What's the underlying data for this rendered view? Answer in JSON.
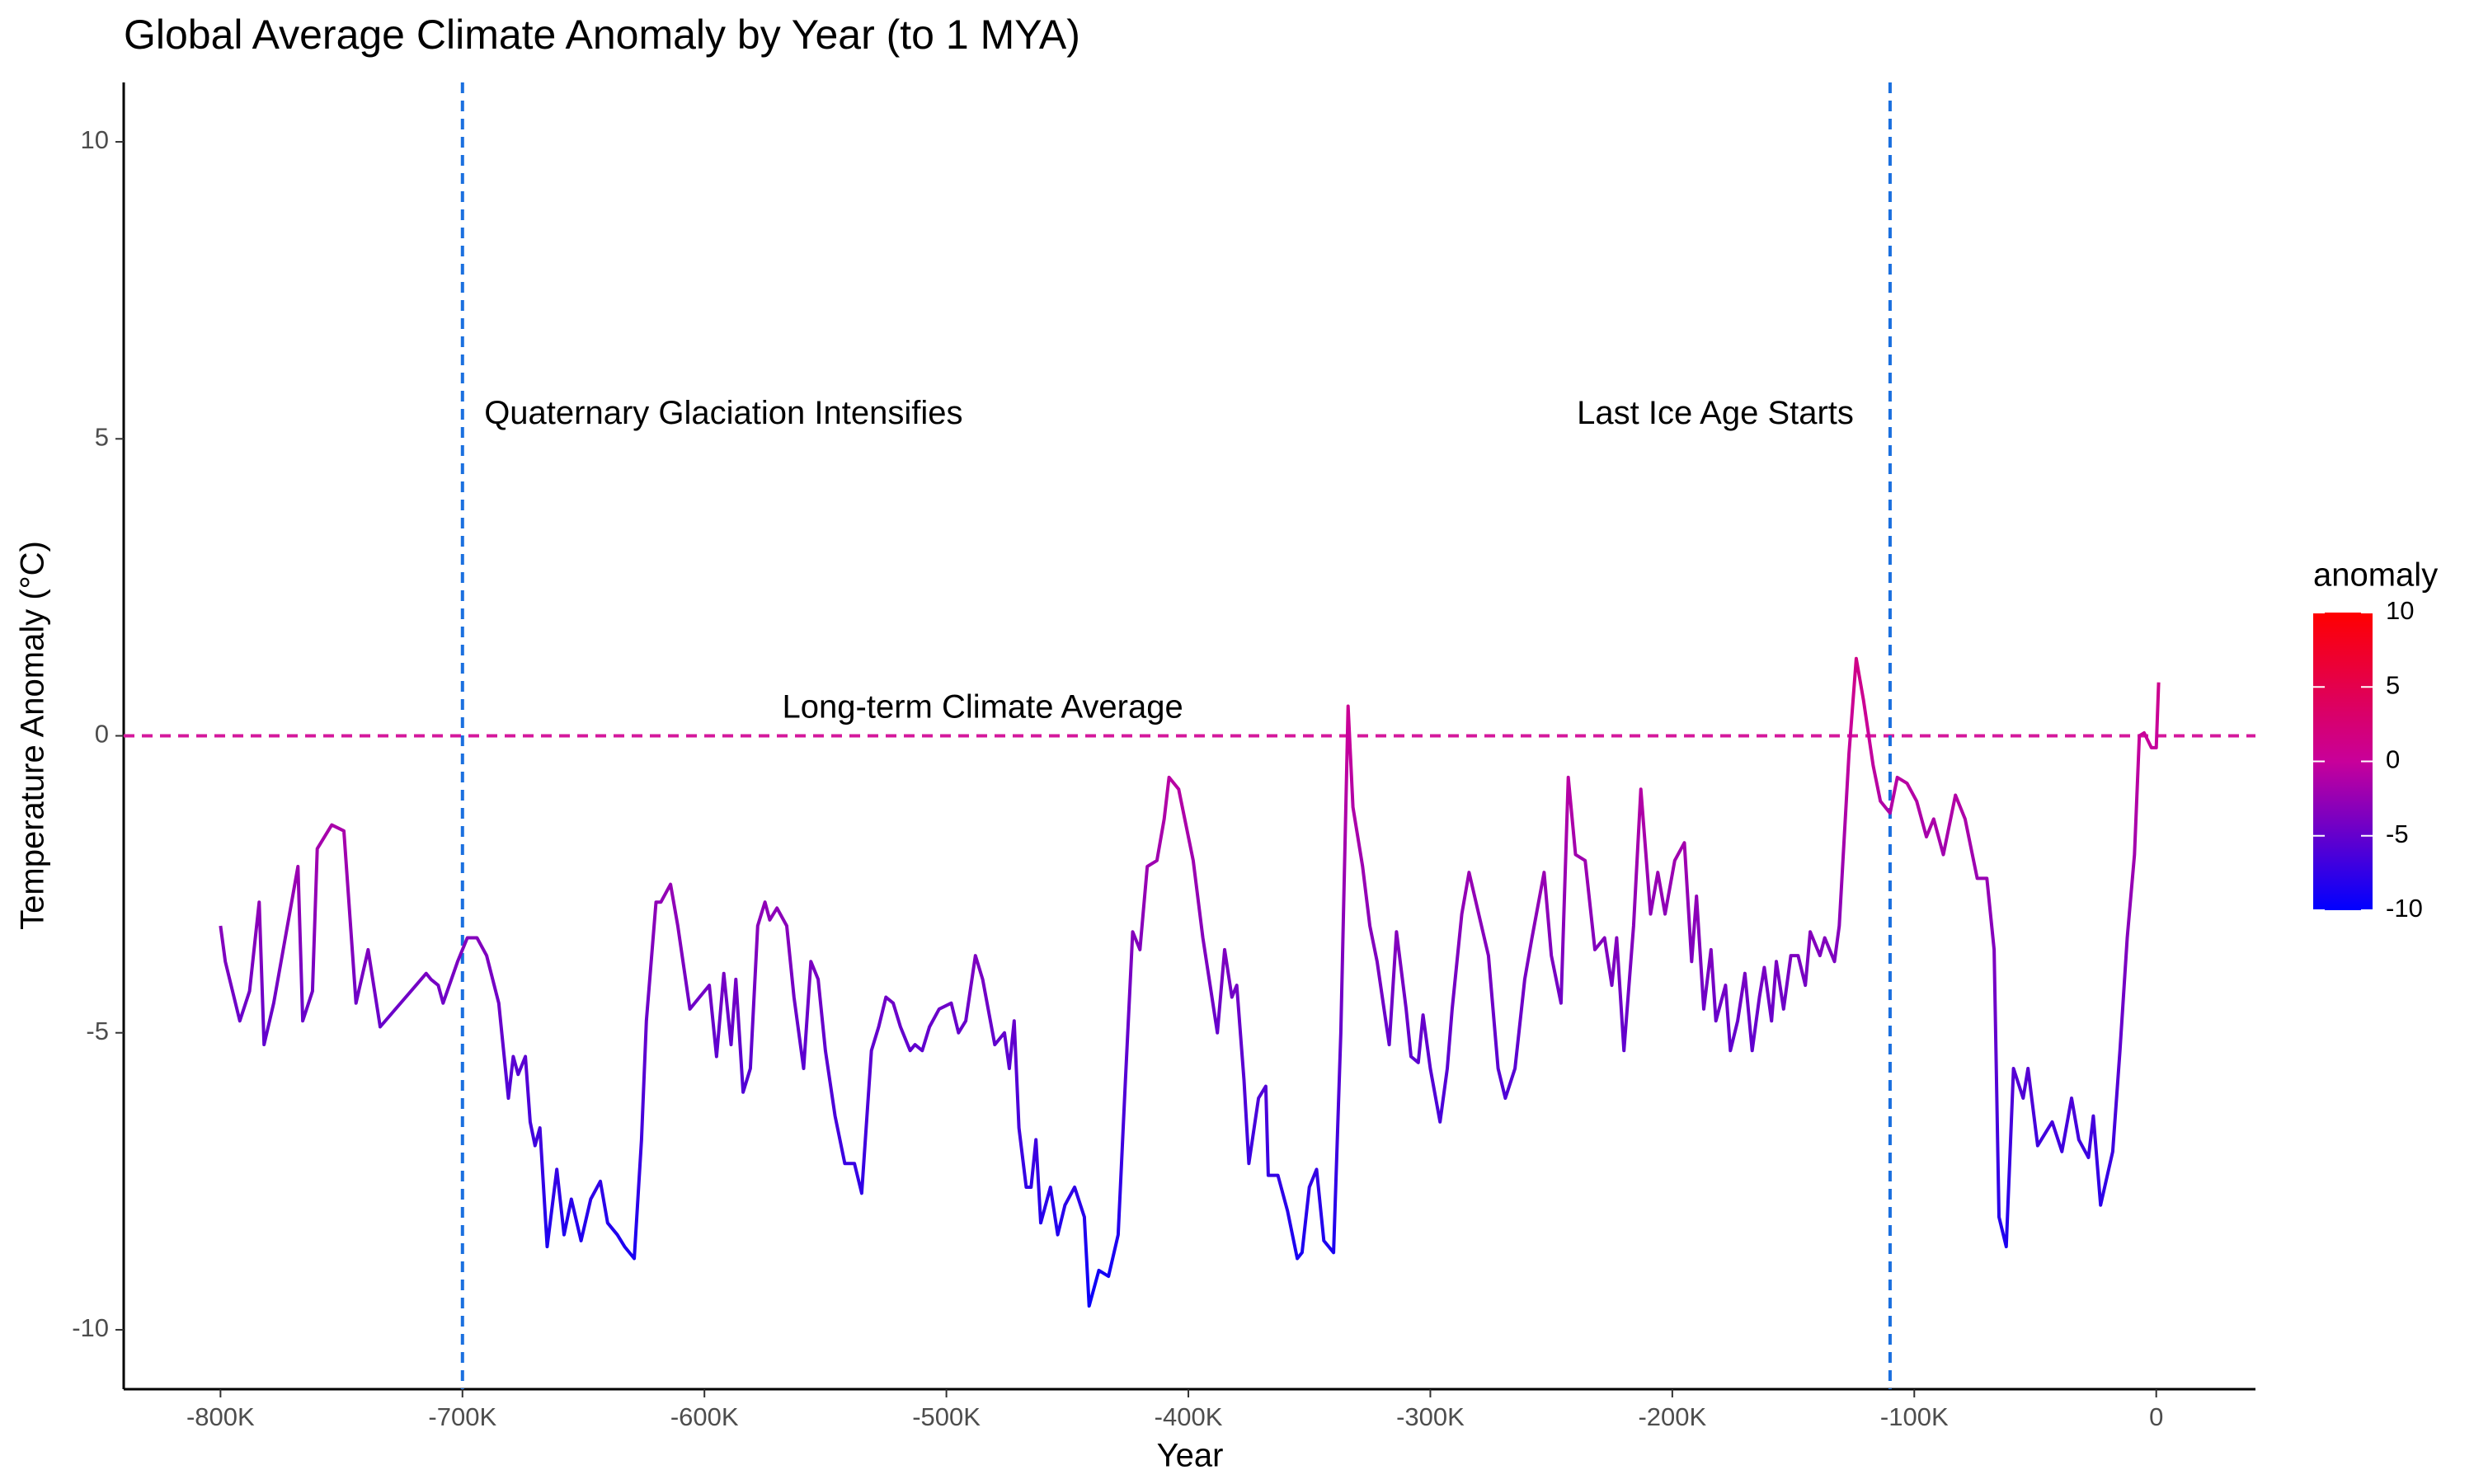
{
  "chart_data": {
    "type": "line",
    "title": "Global Average Climate Anomaly by Year (to 1 MYA)",
    "x_label": "Year",
    "y_label": "Temperature Anomaly (°C)",
    "xlim": [
      -840000,
      41000
    ],
    "ylim": [
      -11,
      11
    ],
    "xticks": [
      {
        "value": -800000,
        "label": "-800K"
      },
      {
        "value": -700000,
        "label": "-700K"
      },
      {
        "value": -600000,
        "label": "-600K"
      },
      {
        "value": -500000,
        "label": "-500K"
      },
      {
        "value": -400000,
        "label": "-400K"
      },
      {
        "value": -300000,
        "label": "-300K"
      },
      {
        "value": -200000,
        "label": "-200K"
      },
      {
        "value": -100000,
        "label": "-100K"
      },
      0
    ],
    "yticks": [
      10,
      5,
      0,
      -5,
      -10
    ],
    "grid": false,
    "legend_title": "anomaly",
    "legend_position": "right",
    "colorbar_ticks": [
      10,
      5,
      0,
      -5,
      -10
    ],
    "color_lim": [
      -10,
      10
    ],
    "colorscale": [
      "#0000ff",
      "#c8009a",
      "#ff0000"
    ],
    "x": [
      -800000,
      -798000,
      -792000,
      -788000,
      -784000,
      -782000,
      -778000,
      -768000,
      -766000,
      -762000,
      -760000,
      -754000,
      -749000,
      -744000,
      -739000,
      -734000,
      -715000,
      -713000,
      -710000,
      -708000,
      -702000,
      -698000,
      -694000,
      -690000,
      -685000,
      -681000,
      -679000,
      -677000,
      -674000,
      -672000,
      -670000,
      -668000,
      -665000,
      -661000,
      -658000,
      -655000,
      -651000,
      -647000,
      -643000,
      -640000,
      -636000,
      -633000,
      -629000,
      -626000,
      -624000,
      -620000,
      -618000,
      -614000,
      -611000,
      -606000,
      -602000,
      -598000,
      -595000,
      -592000,
      -589000,
      -587000,
      -584000,
      -581000,
      -578000,
      -575000,
      -573000,
      -570000,
      -566000,
      -563000,
      -559000,
      -556000,
      -553000,
      -550000,
      -546000,
      -542000,
      -538000,
      -535000,
      -531000,
      -528000,
      -525000,
      -522000,
      -519000,
      -515000,
      -513000,
      -510000,
      -507000,
      -503000,
      -498000,
      -495000,
      -492000,
      -488000,
      -485000,
      -480000,
      -476000,
      -474000,
      -472000,
      -470000,
      -467000,
      -465000,
      -463000,
      -461000,
      -457000,
      -454000,
      -451000,
      -447000,
      -443000,
      -441000,
      -437000,
      -433000,
      -429000,
      -426000,
      -423000,
      -420000,
      -417000,
      -413000,
      -410000,
      -408000,
      -404000,
      -398000,
      -394000,
      -391000,
      -388000,
      -385000,
      -382000,
      -380000,
      -377000,
      -375000,
      -371000,
      -368000,
      -367000,
      -363000,
      -359000,
      -355000,
      -353000,
      -350000,
      -347000,
      -344000,
      -340000,
      -337000,
      -334000,
      -332000,
      -328000,
      -325000,
      -322000,
      -317000,
      -314000,
      -310000,
      -308000,
      -305000,
      -303000,
      -300000,
      -296000,
      -293000,
      -291000,
      -287000,
      -284000,
      -280000,
      -276000,
      -272000,
      -269000,
      -265000,
      -261000,
      -258000,
      -253000,
      -250000,
      -246000,
      -243000,
      -240000,
      -236000,
      -232000,
      -228000,
      -225000,
      -223000,
      -220000,
      -216000,
      -213000,
      -209000,
      -206000,
      -203000,
      -199000,
      -195000,
      -192000,
      -190000,
      -187000,
      -184000,
      -182000,
      -178000,
      -176000,
      -173000,
      -170000,
      -167000,
      -164000,
      -162000,
      -159000,
      -157000,
      -154000,
      -151000,
      -148000,
      -145000,
      -143000,
      -139000,
      -137000,
      -133000,
      -131000,
      -127000,
      -124000,
      -121000,
      -117000,
      -114000,
      -110000,
      -107000,
      -103000,
      -99000,
      -95000,
      -92000,
      -88000,
      -83000,
      -79000,
      -74000,
      -70000,
      -67000,
      -65000,
      -62000,
      -59000,
      -55000,
      -53000,
      -49000,
      -43000,
      -39000,
      -35000,
      -32000,
      -28000,
      -26000,
      -23000,
      -18000,
      -15000,
      -12000,
      -9000,
      -7000,
      -5000,
      -2000,
      0,
      1000
    ],
    "values": [
      -3.2,
      -3.8,
      -4.8,
      -4.3,
      -2.8,
      -5.2,
      -4.5,
      -2.2,
      -4.8,
      -4.3,
      -1.9,
      -1.5,
      -1.6,
      -4.5,
      -3.6,
      -4.9,
      -4.0,
      -4.1,
      -4.2,
      -4.5,
      -3.8,
      -3.4,
      -3.4,
      -3.7,
      -4.5,
      -6.1,
      -5.4,
      -5.7,
      -5.4,
      -6.5,
      -6.9,
      -6.6,
      -8.6,
      -7.3,
      -8.4,
      -7.8,
      -8.5,
      -7.8,
      -7.5,
      -8.2,
      -8.4,
      -8.6,
      -8.8,
      -6.8,
      -4.8,
      -2.8,
      -2.8,
      -2.5,
      -3.2,
      -4.6,
      -4.4,
      -4.2,
      -5.4,
      -4.0,
      -5.2,
      -4.1,
      -6.0,
      -5.6,
      -3.2,
      -2.8,
      -3.1,
      -2.9,
      -3.2,
      -4.4,
      -5.6,
      -3.8,
      -4.1,
      -5.3,
      -6.4,
      -7.2,
      -7.2,
      -7.7,
      -5.3,
      -4.9,
      -4.4,
      -4.5,
      -4.9,
      -5.3,
      -5.2,
      -5.3,
      -4.9,
      -4.6,
      -4.5,
      -5.0,
      -4.8,
      -3.7,
      -4.1,
      -5.2,
      -5.0,
      -5.6,
      -4.8,
      -6.6,
      -7.6,
      -7.6,
      -6.8,
      -8.2,
      -7.6,
      -8.4,
      -7.9,
      -7.6,
      -8.1,
      -9.6,
      -9.0,
      -9.1,
      -8.4,
      -5.8,
      -3.3,
      -3.6,
      -2.2,
      -2.1,
      -1.4,
      -0.7,
      -0.9,
      -2.1,
      -3.4,
      -4.2,
      -5.0,
      -3.6,
      -4.4,
      -4.2,
      -5.8,
      -7.2,
      -6.1,
      -5.9,
      -7.4,
      -7.4,
      -8.0,
      -8.8,
      -8.7,
      -7.6,
      -7.3,
      -8.5,
      -8.7,
      -5.0,
      0.5,
      -1.2,
      -2.2,
      -3.2,
      -3.8,
      -5.2,
      -3.3,
      -4.6,
      -5.4,
      -5.5,
      -4.7,
      -5.6,
      -6.5,
      -5.6,
      -4.6,
      -3.0,
      -2.3,
      -3.0,
      -3.7,
      -5.6,
      -6.1,
      -5.6,
      -4.1,
      -3.4,
      -2.3,
      -3.7,
      -4.5,
      -0.7,
      -2.0,
      -2.1,
      -3.6,
      -3.4,
      -4.2,
      -3.4,
      -5.3,
      -3.2,
      -0.9,
      -3.0,
      -2.3,
      -3.0,
      -2.1,
      -1.8,
      -3.8,
      -2.7,
      -4.6,
      -3.6,
      -4.8,
      -4.2,
      -5.3,
      -4.8,
      -4.0,
      -5.3,
      -4.4,
      -3.9,
      -4.8,
      -3.8,
      -4.6,
      -3.7,
      -3.7,
      -4.2,
      -3.3,
      -3.7,
      -3.4,
      -3.8,
      -3.2,
      -0.3,
      1.3,
      0.6,
      -0.5,
      -1.1,
      -1.3,
      -0.7,
      -0.8,
      -1.1,
      -1.7,
      -1.4,
      -2.0,
      -1.0,
      -1.4,
      -2.4,
      -2.4,
      -3.6,
      -8.1,
      -8.6,
      -5.6,
      -6.1,
      -5.6,
      -6.9,
      -6.5,
      -7.0,
      -6.1,
      -6.8,
      -7.1,
      -6.4,
      -7.9,
      -7.0,
      -5.3,
      -3.4,
      -2.0,
      0.0,
      0.05,
      -0.2,
      -0.2,
      0.9
    ],
    "vlines": [
      {
        "x": -700000,
        "color": "#1a6fdf"
      },
      {
        "x": -110000,
        "color": "#1a6fdf"
      }
    ],
    "hlines": [
      {
        "y": 0,
        "color": "#d4189c"
      }
    ],
    "annotations": [
      {
        "text": "Quaternary Glaciation Intensifies",
        "x": -691000,
        "y": 5.4,
        "align": "left",
        "color": "#1a6fdf"
      },
      {
        "text": "Last Ice Age Starts",
        "x": -125000,
        "y": 5.4,
        "align": "right",
        "color": "#1a6fdf"
      },
      {
        "text": "Long-term Climate Average",
        "x": -485000,
        "y": 0.45,
        "align": "center",
        "color": "#d4189c"
      }
    ]
  }
}
